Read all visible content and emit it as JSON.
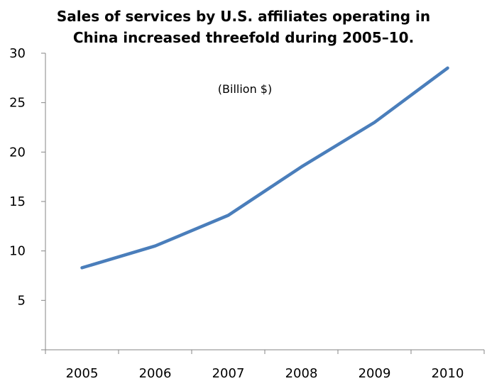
{
  "chart_data": {
    "type": "line",
    "title_lines": [
      "Sales of services by U.S. affiliates operating in",
      "China  increased threefold during 2005–10."
    ],
    "annotation": "(Billion $)",
    "xlabel": "",
    "ylabel": "",
    "categories": [
      "2005",
      "2006",
      "2007",
      "2008",
      "2009",
      "2010"
    ],
    "series": [
      {
        "values": [
          8.3,
          10.5,
          13.6,
          18.5,
          23.0,
          28.5
        ],
        "color": "#4A7EBB"
      }
    ],
    "yticks": [
      5,
      10,
      15,
      20,
      25,
      30
    ],
    "ylim": [
      0,
      30
    ],
    "grid": false,
    "legend": "none"
  }
}
